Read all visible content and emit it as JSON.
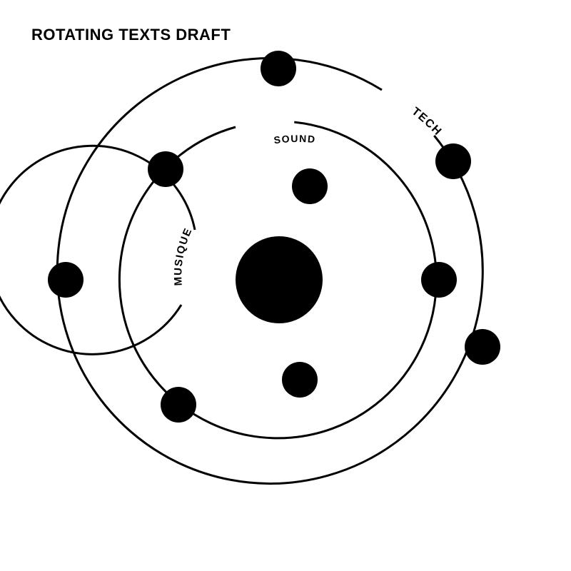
{
  "title": "ROTATING TEXTS DRAFT",
  "colors": {
    "background": "#ffffff",
    "ink": "#000000"
  },
  "orbits": {
    "inner": {
      "label": "MUSIQUE"
    },
    "middle": {
      "label": "SOUND"
    },
    "outer": {
      "label": "TECH"
    }
  }
}
